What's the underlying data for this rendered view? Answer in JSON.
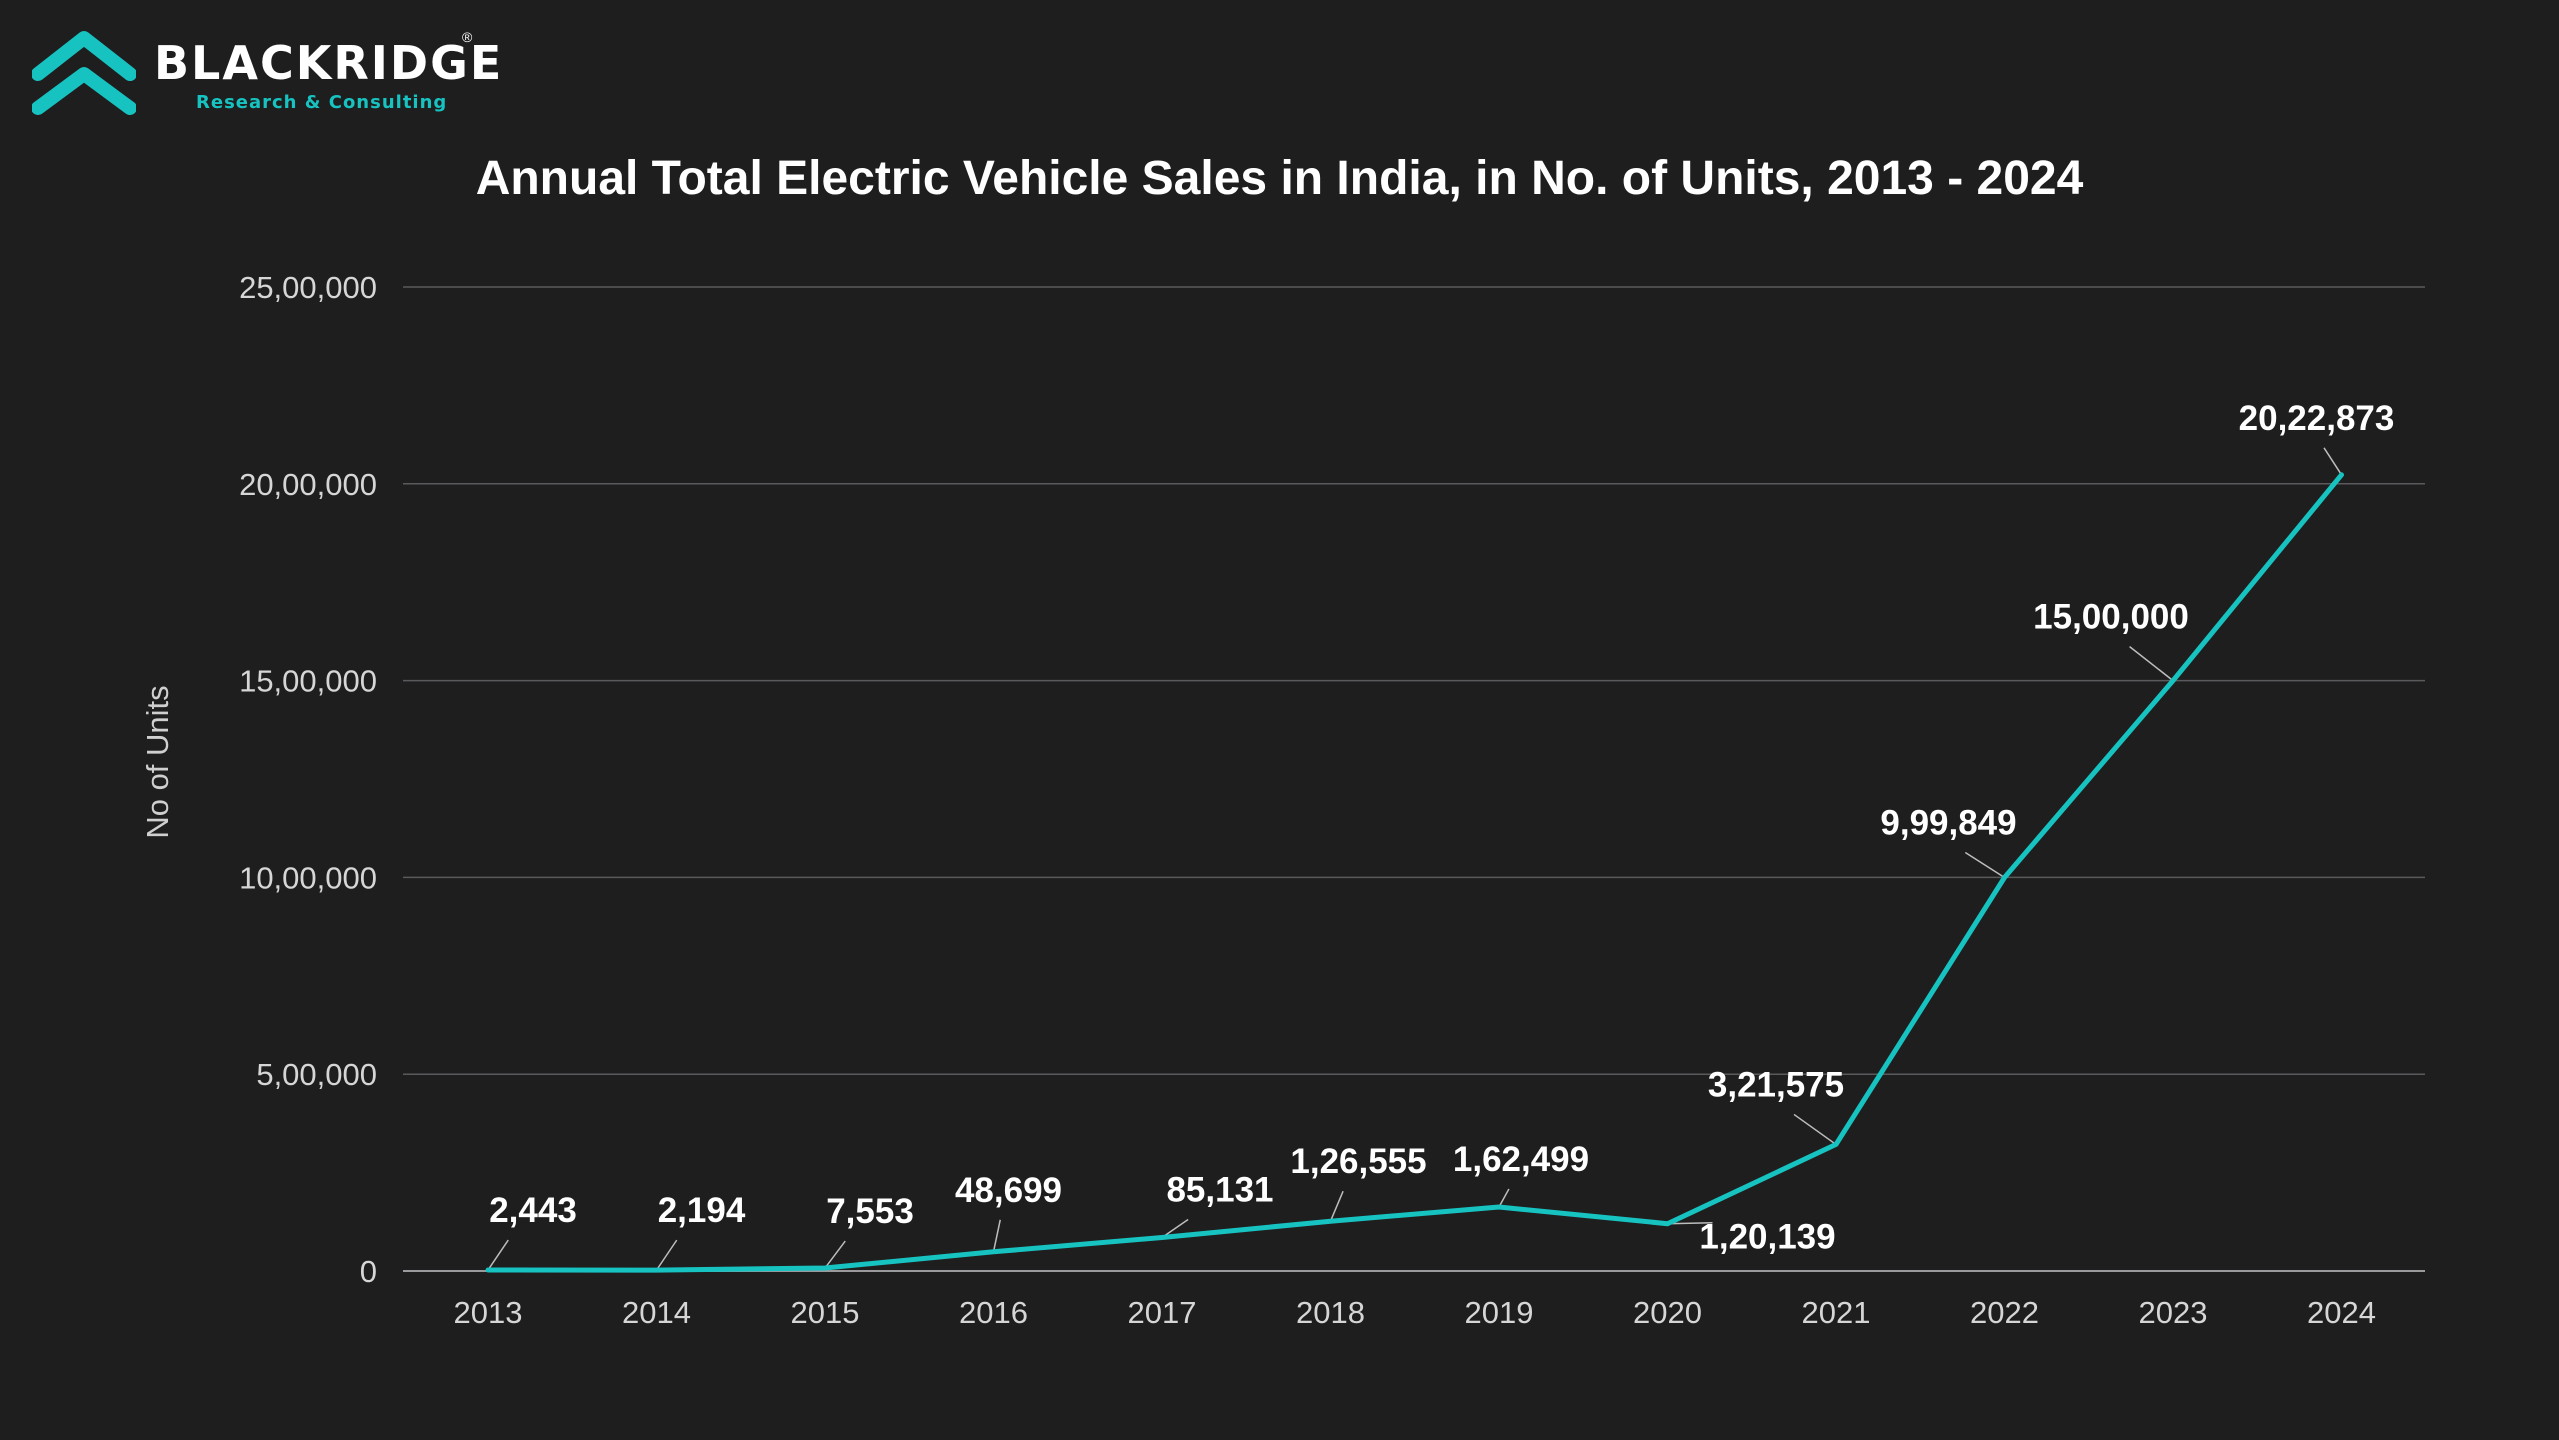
{
  "brand": {
    "name": "BLACKRIDGE",
    "registered": "®",
    "tagline": "Research & Consulting",
    "accent_color": "#17c3c0"
  },
  "chart_data": {
    "type": "line",
    "title": "Annual Total Electric Vehicle Sales in India, in No. of Units, 2013 - 2024",
    "xlabel": "",
    "ylabel": "No of Units",
    "ylim": [
      0,
      2500000
    ],
    "grid": true,
    "categories": [
      "2013",
      "2014",
      "2015",
      "2016",
      "2017",
      "2018",
      "2019",
      "2020",
      "2021",
      "2022",
      "2023",
      "2024"
    ],
    "yticks": [
      {
        "value": 0,
        "label": "0"
      },
      {
        "value": 500000,
        "label": "5,00,000"
      },
      {
        "value": 1000000,
        "label": "10,00,000"
      },
      {
        "value": 1500000,
        "label": "15,00,000"
      },
      {
        "value": 2000000,
        "label": "20,00,000"
      },
      {
        "value": 2500000,
        "label": "25,00,000"
      }
    ],
    "series": [
      {
        "name": "EV Sales",
        "color": "#17c3c0",
        "values": [
          2443,
          2194,
          7553,
          48699,
          85131,
          126555,
          162499,
          120139,
          321575,
          999849,
          1500000,
          2022873
        ],
        "labels": [
          "2,443",
          "2,194",
          "7,553",
          "48,699",
          "85,131",
          "1,26,555",
          "1,62,499",
          "1,20,139",
          "3,21,575",
          "9,99,849",
          "15,00,000",
          "20,22,873"
        ]
      }
    ]
  }
}
